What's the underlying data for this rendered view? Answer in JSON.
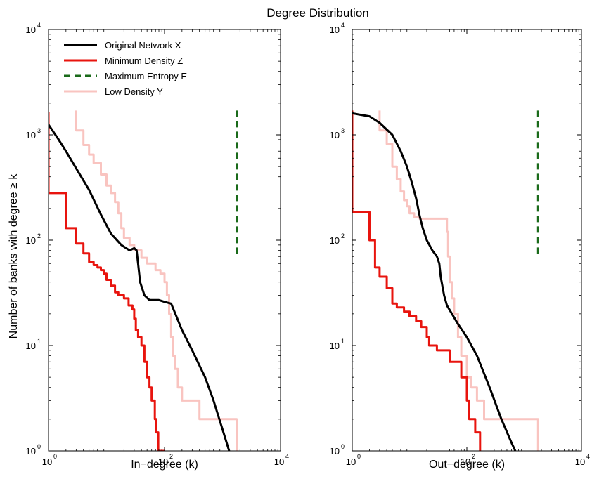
{
  "figure": {
    "title": "Degree Distribution",
    "ylabel": "Number of banks with degree  ≥ k"
  },
  "chart_data": [
    {
      "type": "line",
      "panel": "left",
      "xlabel": "In−degree (k)",
      "ylabel": "Number of banks with degree  ≥ k",
      "xscale": "log",
      "yscale": "log",
      "xlim": [
        1,
        10000
      ],
      "ylim": [
        1,
        10000
      ],
      "xticks": [
        {
          "base": "10",
          "exp": "0"
        },
        {
          "base": "10",
          "exp": "2"
        },
        {
          "base": "10",
          "exp": "4"
        }
      ],
      "yticks": [
        {
          "base": "10",
          "exp": "0"
        },
        {
          "base": "10",
          "exp": "1"
        },
        {
          "base": "10",
          "exp": "2"
        },
        {
          "base": "10",
          "exp": "3"
        },
        {
          "base": "10",
          "exp": "4"
        }
      ],
      "grid": false,
      "legend": "top-left",
      "series": [
        {
          "name": "Original Network X",
          "color": "#000000",
          "style": "solid",
          "step": false,
          "points": [
            [
              1,
              1250
            ],
            [
              1.5,
              900
            ],
            [
              2,
              700
            ],
            [
              3,
              480
            ],
            [
              5,
              300
            ],
            [
              8,
              175
            ],
            [
              12,
              115
            ],
            [
              18,
              90
            ],
            [
              25,
              80
            ],
            [
              30,
              84
            ],
            [
              33,
              80
            ],
            [
              35,
              60
            ],
            [
              38,
              40
            ],
            [
              45,
              30
            ],
            [
              55,
              27
            ],
            [
              80,
              27
            ],
            [
              100,
              26
            ],
            [
              130,
              25
            ],
            [
              160,
              19
            ],
            [
              200,
              14
            ],
            [
              300,
              9
            ],
            [
              500,
              5
            ],
            [
              700,
              3
            ],
            [
              1000,
              1.6
            ],
            [
              1300,
              1
            ]
          ]
        },
        {
          "name": "Minimum Density Z",
          "color": "#e8140e",
          "style": "solid",
          "step": true,
          "points": [
            [
              1,
              1650
            ],
            [
              1,
              280
            ],
            [
              2,
              280
            ],
            [
              2,
              130
            ],
            [
              3,
              130
            ],
            [
              3,
              93
            ],
            [
              4,
              93
            ],
            [
              4,
              75
            ],
            [
              5,
              75
            ],
            [
              5,
              62
            ],
            [
              6,
              62
            ],
            [
              6,
              58
            ],
            [
              7,
              58
            ],
            [
              7,
              55
            ],
            [
              8,
              55
            ],
            [
              8,
              52
            ],
            [
              9,
              52
            ],
            [
              9,
              48
            ],
            [
              10,
              48
            ],
            [
              10,
              42
            ],
            [
              12,
              42
            ],
            [
              12,
              37
            ],
            [
              14,
              37
            ],
            [
              14,
              32
            ],
            [
              16,
              32
            ],
            [
              16,
              30
            ],
            [
              20,
              30
            ],
            [
              20,
              28
            ],
            [
              24,
              28
            ],
            [
              24,
              24
            ],
            [
              28,
              24
            ],
            [
              28,
              22
            ],
            [
              30,
              22
            ],
            [
              30,
              18
            ],
            [
              32,
              18
            ],
            [
              32,
              14
            ],
            [
              35,
              14
            ],
            [
              35,
              12
            ],
            [
              40,
              12
            ],
            [
              40,
              10
            ],
            [
              45,
              10
            ],
            [
              45,
              7
            ],
            [
              50,
              7
            ],
            [
              50,
              5
            ],
            [
              55,
              5
            ],
            [
              55,
              4
            ],
            [
              60,
              4
            ],
            [
              60,
              3
            ],
            [
              68,
              3
            ],
            [
              68,
              2
            ],
            [
              72,
              2
            ],
            [
              72,
              1.5
            ],
            [
              78,
              1.5
            ],
            [
              78,
              1
            ],
            [
              100,
              1
            ]
          ]
        },
        {
          "name": "Maximum Entropy E",
          "color": "#1a6a1a",
          "style": "dashed",
          "step": false,
          "points": [
            [
              1750,
              1700
            ],
            [
              1750,
              68
            ]
          ]
        },
        {
          "name": "Low Density Y",
          "color": "#f9c4c0",
          "style": "solid",
          "step": true,
          "points": [
            [
              3,
              1700
            ],
            [
              3,
              1100
            ],
            [
              4,
              1100
            ],
            [
              4,
              800
            ],
            [
              5,
              800
            ],
            [
              5,
              650
            ],
            [
              6,
              650
            ],
            [
              6,
              540
            ],
            [
              8,
              540
            ],
            [
              8,
              420
            ],
            [
              10,
              420
            ],
            [
              10,
              330
            ],
            [
              12,
              330
            ],
            [
              12,
              280
            ],
            [
              14,
              280
            ],
            [
              14,
              230
            ],
            [
              16,
              230
            ],
            [
              16,
              180
            ],
            [
              18,
              180
            ],
            [
              18,
              130
            ],
            [
              20,
              130
            ],
            [
              20,
              105
            ],
            [
              25,
              105
            ],
            [
              25,
              90
            ],
            [
              30,
              90
            ],
            [
              30,
              80
            ],
            [
              40,
              80
            ],
            [
              40,
              68
            ],
            [
              50,
              68
            ],
            [
              50,
              60
            ],
            [
              70,
              60
            ],
            [
              70,
              52
            ],
            [
              85,
              52
            ],
            [
              85,
              48
            ],
            [
              100,
              48
            ],
            [
              100,
              40
            ],
            [
              110,
              40
            ],
            [
              110,
              30
            ],
            [
              120,
              30
            ],
            [
              120,
              20
            ],
            [
              130,
              20
            ],
            [
              130,
              12
            ],
            [
              140,
              12
            ],
            [
              140,
              8
            ],
            [
              150,
              8
            ],
            [
              150,
              6
            ],
            [
              170,
              6
            ],
            [
              170,
              4
            ],
            [
              200,
              4
            ],
            [
              200,
              3
            ],
            [
              400,
              3
            ],
            [
              400,
              2
            ],
            [
              1750,
              2
            ],
            [
              1750,
              1
            ]
          ]
        }
      ]
    },
    {
      "type": "line",
      "panel": "right",
      "xlabel": "Out−degree (k)",
      "xscale": "log",
      "yscale": "log",
      "xlim": [
        1,
        10000
      ],
      "ylim": [
        1,
        10000
      ],
      "xticks": [
        {
          "base": "10",
          "exp": "0"
        },
        {
          "base": "10",
          "exp": "2"
        },
        {
          "base": "10",
          "exp": "4"
        }
      ],
      "yticks": [
        {
          "base": "10",
          "exp": "0"
        },
        {
          "base": "10",
          "exp": "1"
        },
        {
          "base": "10",
          "exp": "2"
        },
        {
          "base": "10",
          "exp": "3"
        },
        {
          "base": "10",
          "exp": "4"
        }
      ],
      "grid": false,
      "series": [
        {
          "name": "Original Network X",
          "color": "#000000",
          "style": "solid",
          "step": false,
          "points": [
            [
              1,
              1600
            ],
            [
              2,
              1500
            ],
            [
              3,
              1300
            ],
            [
              5,
              1000
            ],
            [
              7,
              700
            ],
            [
              9,
              500
            ],
            [
              11,
              350
            ],
            [
              13,
              250
            ],
            [
              15,
              170
            ],
            [
              17,
              130
            ],
            [
              20,
              100
            ],
            [
              25,
              80
            ],
            [
              30,
              70
            ],
            [
              33,
              60
            ],
            [
              35,
              45
            ],
            [
              40,
              30
            ],
            [
              45,
              24
            ],
            [
              55,
              20
            ],
            [
              70,
              16
            ],
            [
              100,
              12
            ],
            [
              150,
              8
            ],
            [
              250,
              4
            ],
            [
              400,
              2
            ],
            [
              600,
              1.2
            ],
            [
              700,
              1
            ]
          ]
        },
        {
          "name": "Minimum Density Z",
          "color": "#e8140e",
          "style": "solid",
          "step": true,
          "points": [
            [
              1,
              1700
            ],
            [
              1,
              185
            ],
            [
              2,
              185
            ],
            [
              2,
              100
            ],
            [
              2.5,
              100
            ],
            [
              2.5,
              55
            ],
            [
              3,
              55
            ],
            [
              3,
              45
            ],
            [
              4,
              45
            ],
            [
              4,
              35
            ],
            [
              5,
              35
            ],
            [
              5,
              25
            ],
            [
              6,
              25
            ],
            [
              6,
              23
            ],
            [
              8,
              23
            ],
            [
              8,
              21
            ],
            [
              10,
              21
            ],
            [
              10,
              19
            ],
            [
              13,
              19
            ],
            [
              13,
              17
            ],
            [
              16,
              17
            ],
            [
              16,
              15
            ],
            [
              20,
              15
            ],
            [
              20,
              12
            ],
            [
              22,
              12
            ],
            [
              22,
              10
            ],
            [
              30,
              10
            ],
            [
              30,
              9
            ],
            [
              50,
              9
            ],
            [
              50,
              7
            ],
            [
              80,
              7
            ],
            [
              80,
              5
            ],
            [
              100,
              5
            ],
            [
              100,
              3
            ],
            [
              110,
              3
            ],
            [
              110,
              2
            ],
            [
              140,
              2
            ],
            [
              140,
              1.5
            ],
            [
              170,
              1.5
            ],
            [
              170,
              1
            ]
          ]
        },
        {
          "name": "Maximum Entropy E",
          "color": "#1a6a1a",
          "style": "dashed",
          "step": false,
          "points": [
            [
              1750,
              1700
            ],
            [
              1750,
              68
            ]
          ]
        },
        {
          "name": "Low Density Y",
          "color": "#f9c4c0",
          "style": "solid",
          "step": true,
          "points": [
            [
              3,
              1700
            ],
            [
              3,
              1100
            ],
            [
              4,
              1100
            ],
            [
              4,
              820
            ],
            [
              5,
              820
            ],
            [
              5,
              500
            ],
            [
              6,
              500
            ],
            [
              6,
              380
            ],
            [
              7,
              380
            ],
            [
              7,
              290
            ],
            [
              8,
              290
            ],
            [
              8,
              240
            ],
            [
              9,
              240
            ],
            [
              9,
              210
            ],
            [
              10,
              210
            ],
            [
              10,
              180
            ],
            [
              12,
              180
            ],
            [
              12,
              165
            ],
            [
              15,
              165
            ],
            [
              15,
              160
            ],
            [
              45,
              160
            ],
            [
              45,
              120
            ],
            [
              47,
              120
            ],
            [
              47,
              70
            ],
            [
              50,
              70
            ],
            [
              50,
              40
            ],
            [
              55,
              40
            ],
            [
              55,
              28
            ],
            [
              60,
              28
            ],
            [
              60,
              20
            ],
            [
              70,
              20
            ],
            [
              70,
              12
            ],
            [
              80,
              12
            ],
            [
              80,
              8
            ],
            [
              100,
              8
            ],
            [
              100,
              5
            ],
            [
              120,
              5
            ],
            [
              120,
              4
            ],
            [
              150,
              4
            ],
            [
              150,
              3
            ],
            [
              200,
              3
            ],
            [
              200,
              2
            ],
            [
              1750,
              2
            ],
            [
              1750,
              1
            ]
          ]
        }
      ]
    }
  ]
}
